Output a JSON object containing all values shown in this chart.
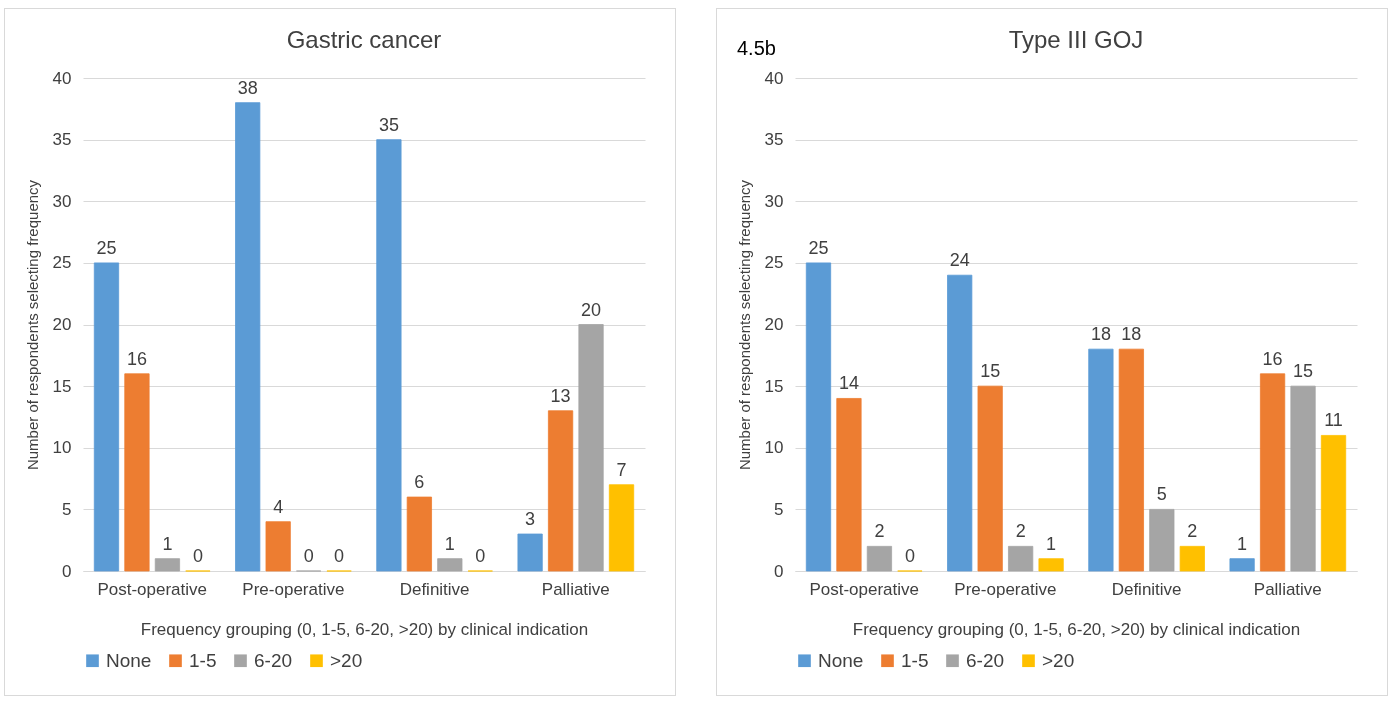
{
  "chart_data": [
    {
      "type": "bar",
      "title": "Gastric cancer",
      "xlabel": "Frequency grouping (0, 1-5, 6-20, >20) by clinical indication",
      "ylabel": "Number of respondents selecting frequency",
      "categories": [
        "Post-operative",
        "Pre-operative",
        "Definitive",
        "Palliative"
      ],
      "series": [
        {
          "name": "None",
          "color": "#5b9bd5",
          "values": [
            25,
            38,
            35,
            3
          ]
        },
        {
          "name": "1-5",
          "color": "#ed7d31",
          "values": [
            16,
            4,
            6,
            13
          ]
        },
        {
          "name": "6-20",
          "color": "#a5a5a5",
          "values": [
            1,
            0,
            1,
            20
          ]
        },
        {
          "name": ">20",
          "color": "#ffc000",
          "values": [
            0,
            0,
            0,
            7
          ]
        }
      ],
      "ylim": [
        0,
        40
      ],
      "yticks": [
        0,
        5,
        10,
        15,
        20,
        25,
        30,
        35,
        40
      ],
      "grid": "y",
      "legend": "bottom",
      "data_labels": true
    },
    {
      "type": "bar",
      "title": "Type III GOJ",
      "xlabel": "Frequency grouping (0, 1-5, 6-20, >20) by clinical indication",
      "ylabel": "Number of respondents selecting frequency",
      "annotations": [
        "4.5b"
      ],
      "categories": [
        "Post-operative",
        "Pre-operative",
        "Definitive",
        "Palliative"
      ],
      "series": [
        {
          "name": "None",
          "color": "#5b9bd5",
          "values": [
            25,
            24,
            18,
            1
          ]
        },
        {
          "name": "1-5",
          "color": "#ed7d31",
          "values": [
            14,
            15,
            18,
            16
          ]
        },
        {
          "name": "6-20",
          "color": "#a5a5a5",
          "values": [
            2,
            2,
            5,
            15
          ]
        },
        {
          "name": ">20",
          "color": "#ffc000",
          "values": [
            0,
            1,
            2,
            11
          ]
        }
      ],
      "ylim": [
        0,
        40
      ],
      "yticks": [
        0,
        5,
        10,
        15,
        20,
        25,
        30,
        35,
        40
      ],
      "grid": "y",
      "legend": "bottom",
      "data_labels": true
    }
  ]
}
